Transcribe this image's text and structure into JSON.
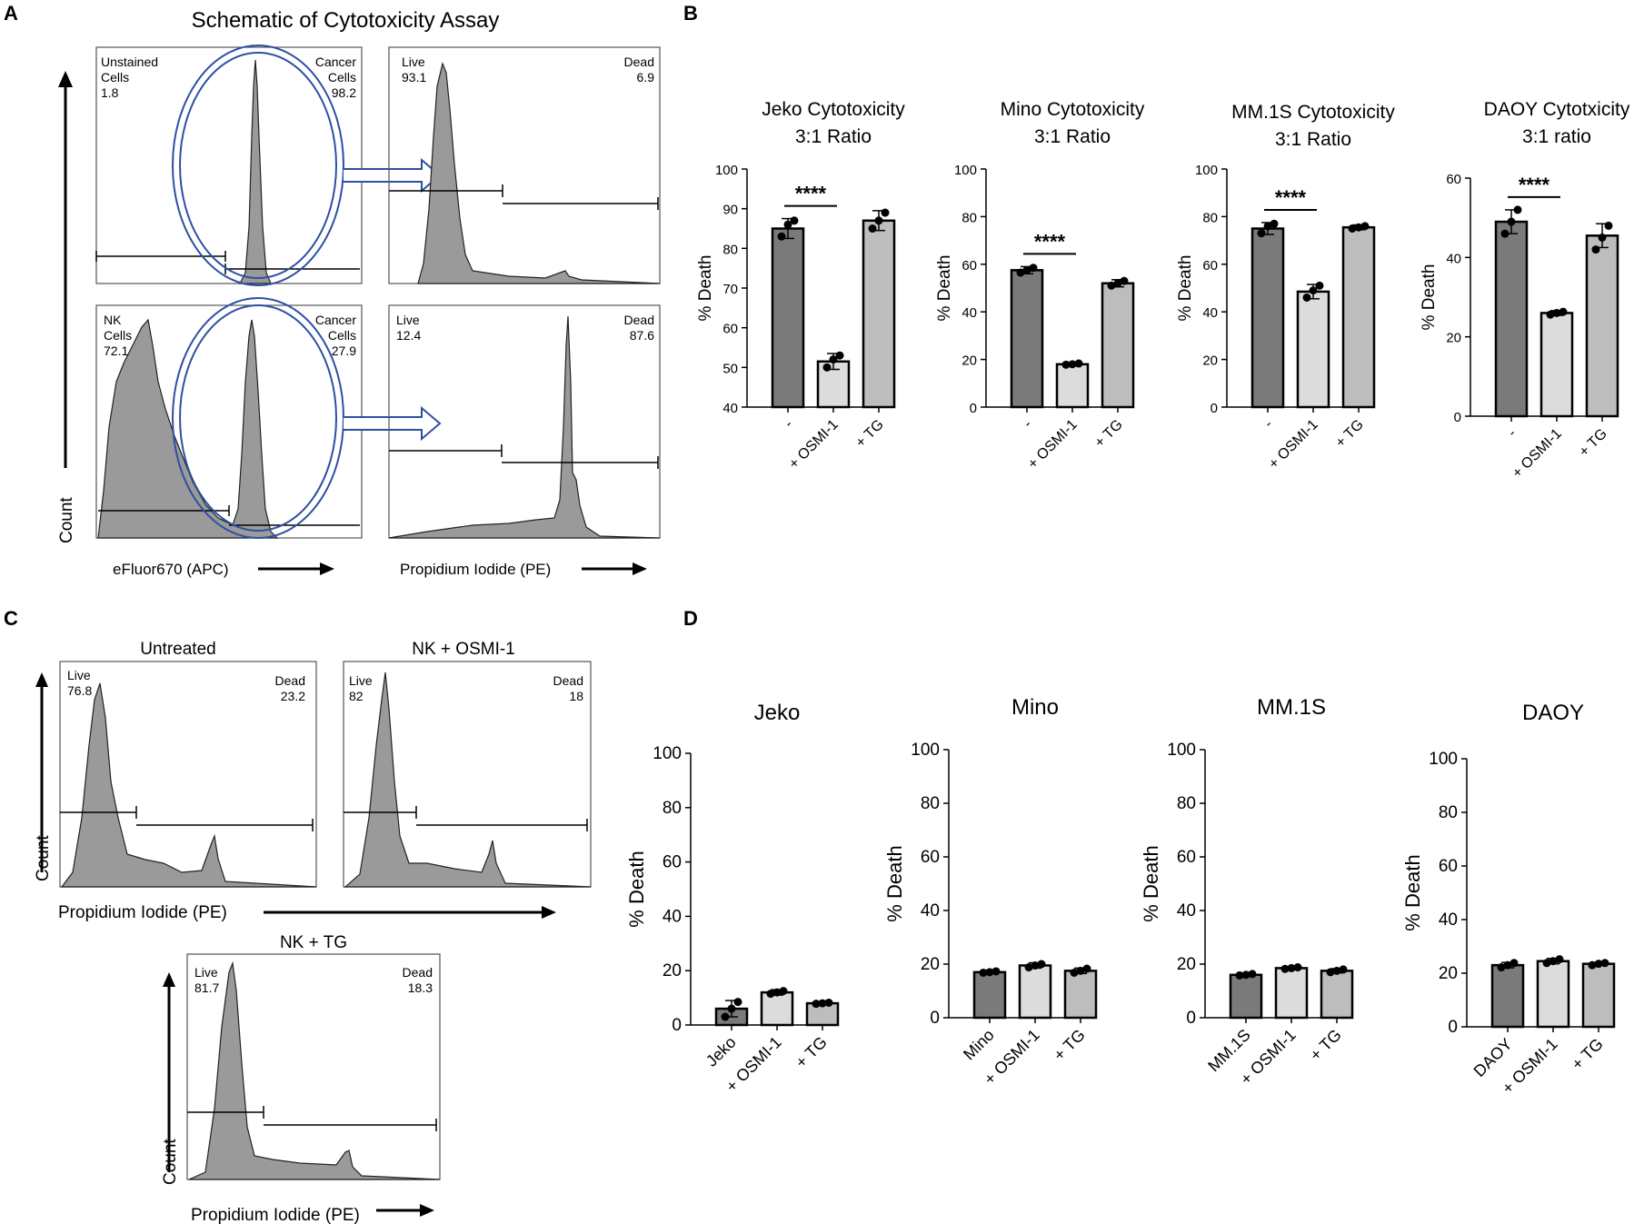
{
  "panel_letters": {
    "a": "A",
    "b": "B",
    "c": "C",
    "d": "D"
  },
  "panel_a": {
    "title": "Schematic of Cytotoxicity Assay",
    "count_label": "Count",
    "x_label_left": "eFluor670 (APC)",
    "x_label_right": "Propidium Iodide (PE)",
    "plots": [
      {
        "left_label": [
          "Unstained",
          "Cells",
          "1.8"
        ],
        "right_label": [
          "Cancer",
          "Cells",
          "98.2"
        ]
      },
      {
        "left_label": [
          "Live",
          "93.1"
        ],
        "right_label": [
          "Dead",
          "6.9"
        ]
      },
      {
        "left_label": [
          "NK",
          "Cells",
          "72.1"
        ],
        "right_label": [
          "Cancer",
          "Cells",
          "27.9"
        ]
      },
      {
        "left_label": [
          "Live",
          "12.4"
        ],
        "right_label": [
          "Dead",
          "87.6"
        ]
      }
    ]
  },
  "panel_c": {
    "count_label": "Count",
    "x_label": "Propidium Iodide (PE)",
    "plots": [
      {
        "title": "Untreated",
        "live": "76.8",
        "dead": "23.2",
        "live_label": "Live",
        "dead_label": "Dead"
      },
      {
        "title": "NK + OSMI-1",
        "live": "82",
        "dead": "18",
        "live_label": "Live",
        "dead_label": "Dead"
      },
      {
        "title": "NK + TG",
        "live": "81.7",
        "dead": "18.3",
        "live_label": "Live",
        "dead_label": "Dead"
      }
    ]
  },
  "chart_data": [
    {
      "panel": "B",
      "type": "bar",
      "title": "Jeko Cytotoxicity\n3:1 Ratio",
      "ylabel": "% Death",
      "categories": [
        "-",
        "+ OSMI-1",
        "+ TG"
      ],
      "values": [
        85,
        51.5,
        87
      ],
      "errors": [
        2.5,
        2,
        2.5
      ],
      "points": [
        [
          83,
          86,
          87
        ],
        [
          50,
          52,
          53
        ],
        [
          85,
          87,
          89
        ]
      ],
      "ylim": [
        40,
        100
      ],
      "yticks": [
        "40",
        "50",
        "60",
        "70",
        "80",
        "90",
        "100"
      ],
      "significance": "****",
      "sig_between": [
        0,
        1
      ],
      "colors": [
        "#7a7a7a",
        "#dcdcdc",
        "#bdbdbd"
      ]
    },
    {
      "panel": "B",
      "type": "bar",
      "title": "Mino Cytotoxicity\n3:1 Ratio",
      "ylabel": "% Death",
      "categories": [
        "-",
        "+ OSMI-1",
        "+ TG"
      ],
      "values": [
        57.5,
        18,
        52
      ],
      "errors": [
        1.5,
        0.6,
        1.5
      ],
      "points": [
        [
          56.5,
          57.5,
          58.5
        ],
        [
          17.8,
          18,
          18.3
        ],
        [
          51,
          52,
          53
        ]
      ],
      "ylim": [
        0,
        100
      ],
      "yticks": [
        "0",
        "20",
        "40",
        "60",
        "80",
        "100"
      ],
      "significance": "****",
      "sig_between": [
        0,
        1
      ],
      "colors": [
        "#7a7a7a",
        "#dcdcdc",
        "#bdbdbd"
      ]
    },
    {
      "panel": "B",
      "type": "bar",
      "title": "MM.1S Cytotoxicity\n3:1 Ratio",
      "ylabel": "% Death",
      "categories": [
        "-",
        "+ OSMI-1",
        "+ TG"
      ],
      "values": [
        75,
        48.5,
        75.5
      ],
      "errors": [
        2.5,
        3,
        1
      ],
      "points": [
        [
          73,
          76,
          77
        ],
        [
          46,
          49,
          51
        ],
        [
          75,
          75.5,
          76
        ]
      ],
      "ylim": [
        0,
        100
      ],
      "yticks": [
        "0",
        "20",
        "40",
        "60",
        "80",
        "100"
      ],
      "significance": "****",
      "sig_between": [
        0,
        1
      ],
      "colors": [
        "#7a7a7a",
        "#dcdcdc",
        "#bdbdbd"
      ]
    },
    {
      "panel": "B",
      "type": "bar",
      "title": "DAOY Cytotxicity\n3:1 ratio",
      "ylabel": "% Death",
      "categories": [
        "-",
        "+ OSMI-1",
        "+ TG"
      ],
      "values": [
        49,
        26,
        45.5
      ],
      "errors": [
        3,
        0.6,
        3
      ],
      "points": [
        [
          46,
          49,
          52
        ],
        [
          25.6,
          26,
          26.3
        ],
        [
          42,
          45,
          48
        ]
      ],
      "ylim": [
        0,
        60
      ],
      "yticks": [
        "0",
        "20",
        "40",
        "60"
      ],
      "significance": "****",
      "sig_between": [
        0,
        1
      ],
      "colors": [
        "#7a7a7a",
        "#dcdcdc",
        "#bdbdbd"
      ]
    },
    {
      "panel": "D",
      "type": "bar",
      "title": "Jeko",
      "ylabel": "% Death",
      "categories": [
        "Jeko",
        "+ OSMI-1",
        "+ TG"
      ],
      "values": [
        6,
        12,
        8
      ],
      "errors": [
        3,
        1,
        0.5
      ],
      "points": [
        [
          3,
          6,
          8.5
        ],
        [
          11.5,
          12,
          12.5
        ],
        [
          7.8,
          8,
          8.2
        ]
      ],
      "ylim": [
        0,
        100
      ],
      "yticks": [
        "0",
        "20",
        "40",
        "60",
        "80",
        "100"
      ],
      "colors": [
        "#7a7a7a",
        "#dcdcdc",
        "#bdbdbd"
      ]
    },
    {
      "panel": "D",
      "type": "bar",
      "title": "Mino",
      "ylabel": "% Death",
      "categories": [
        "Mino",
        "+ OSMI-1",
        "+ TG"
      ],
      "values": [
        17,
        19.5,
        17.5
      ],
      "errors": [
        0.5,
        1,
        1
      ],
      "points": [
        [
          16.8,
          17,
          17.3
        ],
        [
          18.8,
          19.5,
          20
        ],
        [
          16.8,
          17.5,
          18.3
        ]
      ],
      "ylim": [
        0,
        100
      ],
      "yticks": [
        "0",
        "20",
        "40",
        "60",
        "80",
        "100"
      ],
      "colors": [
        "#7a7a7a",
        "#dcdcdc",
        "#bdbdbd"
      ]
    },
    {
      "panel": "D",
      "type": "bar",
      "title": "MM.1S",
      "ylabel": "% Death",
      "categories": [
        "MM.1S",
        "+ OSMI-1",
        "+ TG"
      ],
      "values": [
        16,
        18.5,
        17.5
      ],
      "errors": [
        0.5,
        0.5,
        0.8
      ],
      "points": [
        [
          15.8,
          16,
          16.3
        ],
        [
          18.2,
          18.5,
          18.8
        ],
        [
          17,
          17.5,
          18
        ]
      ],
      "ylim": [
        0,
        100
      ],
      "yticks": [
        "0",
        "20",
        "40",
        "60",
        "80",
        "100"
      ],
      "colors": [
        "#7a7a7a",
        "#dcdcdc",
        "#bdbdbd"
      ]
    },
    {
      "panel": "D",
      "type": "bar",
      "title": "DAOY",
      "ylabel": "% Death",
      "categories": [
        "DAOY",
        "+ OSMI-1",
        "+ TG"
      ],
      "values": [
        23,
        24.5,
        23.5
      ],
      "errors": [
        1,
        1,
        0.5
      ],
      "points": [
        [
          22.2,
          23,
          23.8
        ],
        [
          23.8,
          24.5,
          25.2
        ],
        [
          23,
          23.5,
          23.8
        ]
      ],
      "ylim": [
        0,
        100
      ],
      "yticks": [
        "0",
        "20",
        "40",
        "60",
        "80",
        "100"
      ],
      "colors": [
        "#7a7a7a",
        "#dcdcdc",
        "#bdbdbd"
      ]
    }
  ]
}
